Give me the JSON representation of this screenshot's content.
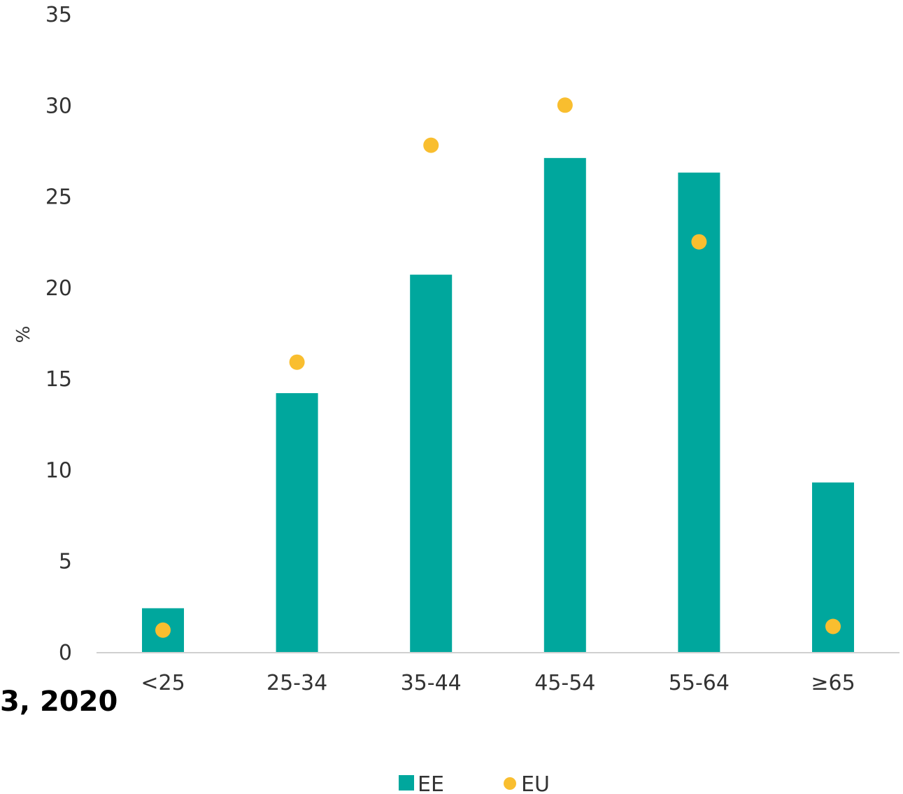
{
  "stray_text": "3, 2020",
  "colors": {
    "ee": "#00A79D",
    "eu": "#F9BE2F",
    "axis": "#D0D0D0"
  },
  "chart_data": {
    "type": "bar",
    "categories": [
      "<25",
      "25-34",
      "35-44",
      "45-54",
      "55-64",
      "≥65"
    ],
    "series": [
      {
        "name": "EE",
        "kind": "bar",
        "values": [
          2.4,
          14.2,
          20.7,
          27.1,
          26.3,
          9.3
        ]
      },
      {
        "name": "EU",
        "kind": "dot",
        "values": [
          1.2,
          15.9,
          27.8,
          30.0,
          22.5,
          1.4
        ]
      }
    ],
    "ylabel": "%",
    "ylim": [
      0,
      35
    ],
    "yticks": [
      "0",
      "5",
      "10",
      "15",
      "20",
      "25",
      "30",
      "35"
    ],
    "grid": false,
    "legend": "bottom"
  }
}
